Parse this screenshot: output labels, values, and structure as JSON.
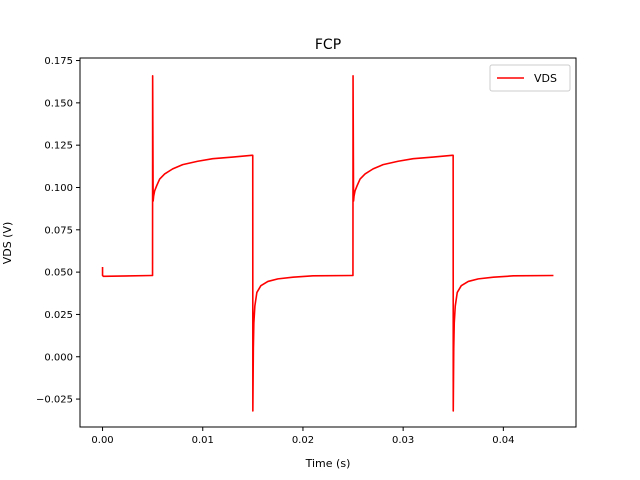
{
  "chart_data": {
    "type": "line",
    "title": "FCP",
    "xlabel": "Time (s)",
    "ylabel": "VDS (V)",
    "xlim": [
      -0.00225,
      0.04725
    ],
    "ylim": [
      -0.0415,
      0.1765
    ],
    "xticks": [
      0.0,
      0.01,
      0.02,
      0.03,
      0.04
    ],
    "xtick_labels": [
      "0.00",
      "0.01",
      "0.02",
      "0.03",
      "0.04"
    ],
    "yticks": [
      -0.025,
      0.0,
      0.025,
      0.05,
      0.075,
      0.1,
      0.125,
      0.15,
      0.175
    ],
    "ytick_labels": [
      "−0.025",
      "0.000",
      "0.025",
      "0.050",
      "0.075",
      "0.100",
      "0.125",
      "0.150",
      "0.175"
    ],
    "grid": false,
    "legend": "top-right",
    "series": [
      {
        "name": "VDS",
        "color": "#ff0000",
        "x": [
          0.0,
          0.0,
          0.0001,
          0.0049,
          0.00499,
          0.005,
          0.00505,
          0.0051,
          0.0052,
          0.0054,
          0.0057,
          0.0062,
          0.007,
          0.008,
          0.0095,
          0.011,
          0.013,
          0.0149,
          0.01499,
          0.015,
          0.01505,
          0.0151,
          0.0152,
          0.0154,
          0.0158,
          0.0165,
          0.0175,
          0.019,
          0.021,
          0.0249,
          0.02499,
          0.025,
          0.02505,
          0.0251,
          0.0252,
          0.0254,
          0.0257,
          0.0262,
          0.027,
          0.028,
          0.0295,
          0.031,
          0.033,
          0.0349,
          0.03499,
          0.035,
          0.03505,
          0.0351,
          0.0352,
          0.0354,
          0.0358,
          0.0365,
          0.0375,
          0.039,
          0.041,
          0.045
        ],
        "y": [
          0.053,
          0.048,
          0.0475,
          0.048,
          0.048,
          0.166,
          0.092,
          0.095,
          0.098,
          0.101,
          0.105,
          0.108,
          0.111,
          0.1135,
          0.1155,
          0.117,
          0.118,
          0.119,
          0.119,
          -0.032,
          0.005,
          0.02,
          0.03,
          0.038,
          0.042,
          0.0445,
          0.046,
          0.047,
          0.0478,
          0.048,
          0.048,
          0.166,
          0.092,
          0.095,
          0.098,
          0.101,
          0.105,
          0.108,
          0.111,
          0.1135,
          0.1155,
          0.117,
          0.118,
          0.119,
          0.119,
          -0.032,
          0.005,
          0.02,
          0.03,
          0.038,
          0.042,
          0.0445,
          0.046,
          0.047,
          0.0478,
          0.048
        ]
      }
    ]
  }
}
